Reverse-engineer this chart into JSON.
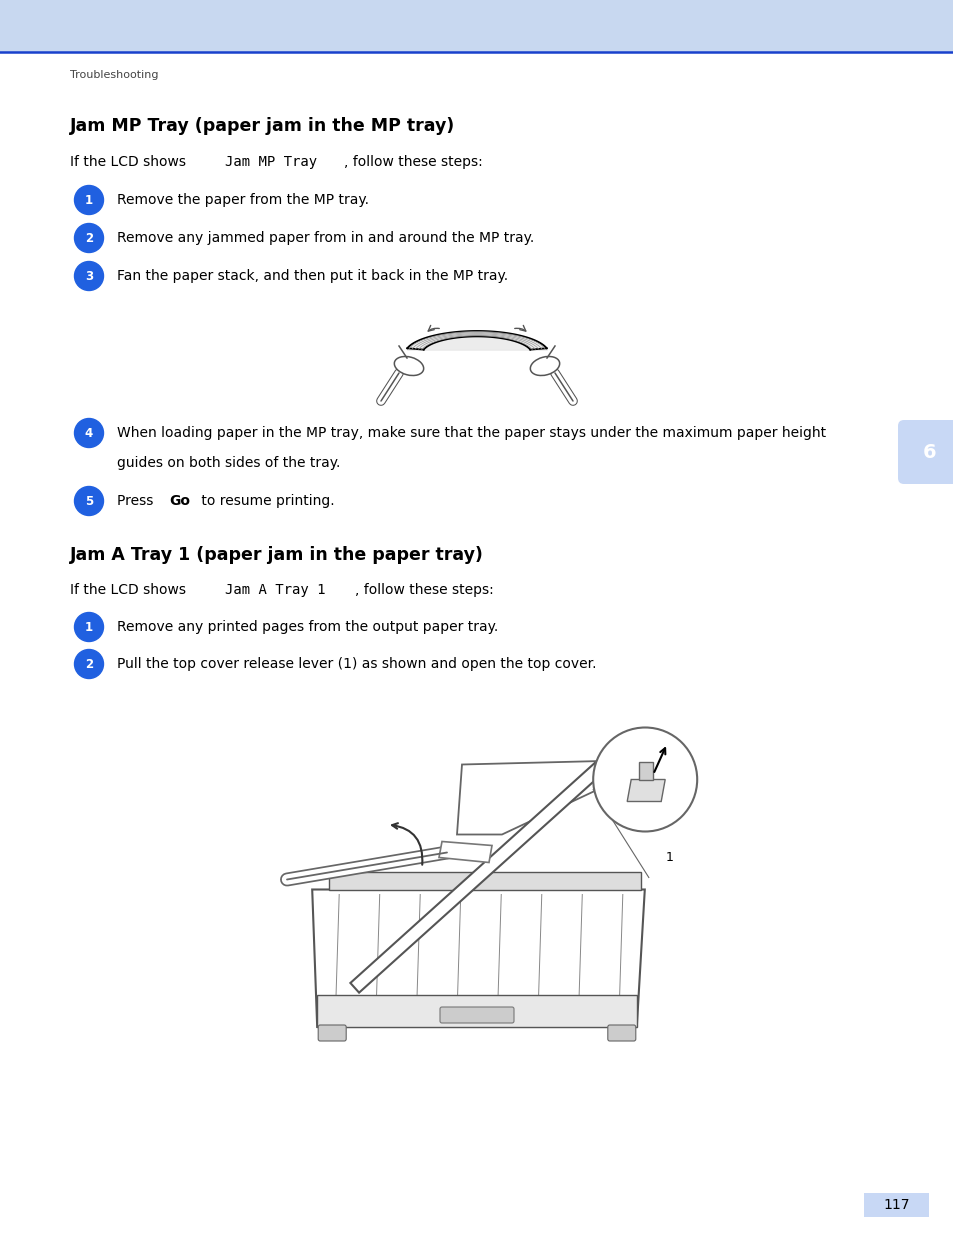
{
  "bg_header_color": "#c8d8f0",
  "bg_white": "#ffffff",
  "blue_color": "#2060e0",
  "blue_light": "#c8d8f5",
  "text_color": "#000000",
  "gray_text": "#555555",
  "header_label": "Troubleshooting",
  "section1_title": "Jam MP Tray (paper jam in the MP tray)",
  "section1_intro_normal1": "If the LCD shows ",
  "section1_intro_code": "Jam MP Tray",
  "section1_intro_normal2": ", follow these steps:",
  "section1_steps": [
    "Remove the paper from the MP tray.",
    "Remove any jammed paper from in and around the MP tray.",
    "Fan the paper stack, and then put it back in the MP tray."
  ],
  "step4_line1": "When loading paper in the MP tray, make sure that the paper stays under the maximum paper height",
  "step4_line2": "guides on both sides of the tray.",
  "step5_normal1": "Press ",
  "step5_bold": "Go",
  "step5_normal2": " to resume printing.",
  "section2_title": "Jam A Tray 1 (paper jam in the paper tray)",
  "section2_intro_normal1": "If the LCD shows ",
  "section2_intro_code": "Jam A Tray 1",
  "section2_intro_normal2": ", follow these steps:",
  "section2_steps": [
    "Remove any printed pages from the output paper tray.",
    "Pull the top cover release lever (1) as shown and open the top cover."
  ],
  "page_number": "117",
  "chapter_number": "6"
}
